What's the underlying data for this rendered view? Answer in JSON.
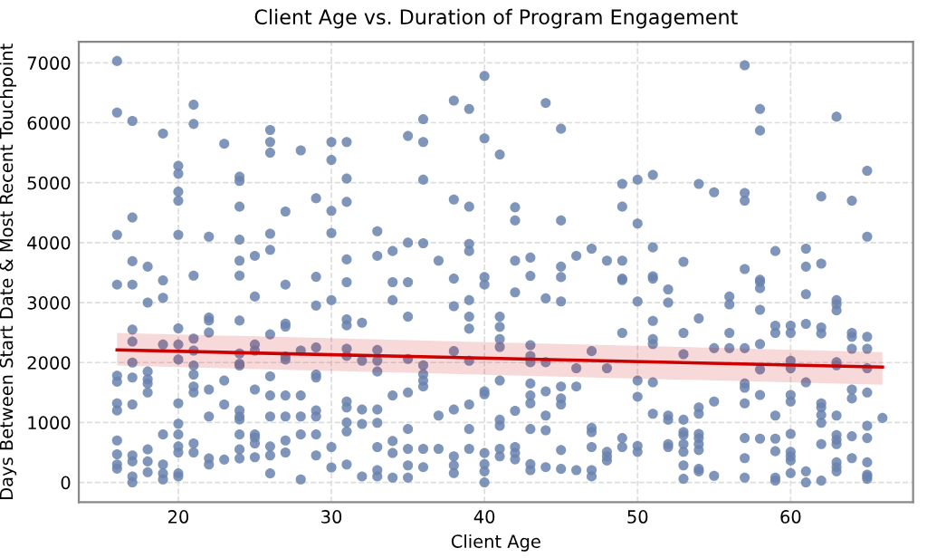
{
  "chart_data": {
    "type": "scatter",
    "title": "Client Age vs. Duration of Program Engagement",
    "xlabel": "Client Age",
    "ylabel": "Days Between Start Date & Most Recent Touchpoint",
    "xlim": [
      13.5,
      68
    ],
    "ylim": [
      -330,
      7350
    ],
    "xticks": [
      20,
      30,
      40,
      50,
      60
    ],
    "yticks": [
      0,
      1000,
      2000,
      3000,
      4000,
      5000,
      6000,
      7000
    ],
    "grid": true,
    "series": [
      {
        "marker": "circle",
        "color": "#6a82ae",
        "x": [
          16,
          16,
          16,
          16,
          16,
          16,
          16,
          16,
          16,
          16,
          16,
          16,
          17,
          17,
          17,
          17,
          17,
          17,
          17,
          17,
          17,
          17,
          17,
          17,
          17,
          18,
          18,
          18,
          18,
          18,
          18,
          18,
          18,
          18,
          19,
          19,
          19,
          19,
          19,
          19,
          19,
          19,
          20,
          20,
          20,
          20,
          20,
          20,
          20,
          20,
          20,
          20,
          20,
          20,
          20,
          20,
          20,
          21,
          21,
          21,
          21,
          21,
          21,
          21,
          21,
          21,
          21,
          21,
          22,
          22,
          22,
          22,
          22,
          22,
          22,
          22,
          23,
          23,
          23,
          23,
          24,
          24,
          24,
          24,
          24,
          24,
          24,
          24,
          24,
          24,
          24,
          24,
          24,
          24,
          24,
          24,
          25,
          25,
          25,
          25,
          25,
          25,
          25,
          25,
          25,
          26,
          26,
          26,
          26,
          26,
          26,
          26,
          26,
          26,
          26,
          26,
          26,
          27,
          27,
          27,
          27,
          27,
          27,
          27,
          27,
          27,
          27,
          28,
          28,
          28,
          28,
          28,
          28,
          29,
          29,
          29,
          29,
          29,
          29,
          29,
          29,
          29,
          29,
          30,
          30,
          30,
          30,
          30,
          30,
          30,
          31,
          31,
          31,
          31,
          31,
          31,
          31,
          31,
          31,
          31,
          31,
          31,
          31,
          31,
          32,
          32,
          32,
          32,
          32,
          33,
          33,
          33,
          33,
          33,
          33,
          33,
          33,
          33,
          33,
          34,
          34,
          34,
          34,
          34,
          34,
          34,
          35,
          35,
          35,
          35,
          35,
          35,
          35,
          35,
          35,
          35,
          36,
          36,
          36,
          36,
          36,
          36,
          36,
          36,
          36,
          36,
          37,
          37,
          37,
          38,
          38,
          38,
          38,
          38,
          38,
          38,
          38,
          38,
          39,
          39,
          39,
          39,
          39,
          39,
          39,
          39,
          39,
          39,
          39,
          40,
          40,
          40,
          40,
          40,
          40,
          40,
          40,
          40,
          40,
          41,
          41,
          41,
          41,
          41,
          41,
          41,
          41,
          41,
          41,
          42,
          42,
          42,
          42,
          42,
          42,
          42,
          42,
          43,
          43,
          43,
          43,
          43,
          43,
          43,
          43,
          43,
          43,
          43,
          44,
          44,
          44,
          44,
          44,
          44,
          44,
          45,
          45,
          45,
          45,
          45,
          45,
          45,
          45,
          45,
          45,
          46,
          46,
          46,
          46,
          47,
          47,
          47,
          47,
          47,
          47,
          47,
          48,
          48,
          48,
          48,
          48,
          49,
          49,
          49,
          49,
          49,
          49,
          49,
          49,
          50,
          50,
          50,
          50,
          50,
          50,
          50,
          51,
          51,
          51,
          51,
          51,
          51,
          51,
          51,
          51,
          52,
          52,
          52,
          52,
          52,
          52,
          53,
          53,
          53,
          53,
          53,
          53,
          53,
          53,
          53,
          53,
          54,
          54,
          54,
          54,
          54,
          54,
          54,
          54,
          54,
          54,
          55,
          55,
          55,
          55,
          56,
          56,
          56,
          56,
          57,
          57,
          57,
          57,
          57,
          57,
          57,
          57,
          57,
          57,
          57,
          58,
          58,
          58,
          58,
          58,
          58,
          58,
          58,
          58,
          58,
          59,
          59,
          59,
          59,
          59,
          59,
          59,
          59,
          60,
          60,
          60,
          60,
          60,
          60,
          60,
          60,
          60,
          60,
          60,
          61,
          61,
          61,
          61,
          61,
          61,
          61,
          62,
          62,
          62,
          62,
          62,
          62,
          62,
          62,
          62,
          62,
          63,
          63,
          63,
          63,
          63,
          63,
          63,
          63,
          63,
          63,
          63,
          63,
          63,
          64,
          64,
          64,
          64,
          64,
          64,
          64,
          64,
          65,
          65,
          65,
          65,
          65,
          65,
          65,
          65,
          65,
          65,
          65,
          65,
          66
        ],
        "values": [
          7030,
          6170,
          4130,
          3300,
          1780,
          1680,
          1320,
          1200,
          700,
          470,
          300,
          230,
          6030,
          4420,
          3690,
          3300,
          2550,
          2350,
          2000,
          1750,
          1300,
          450,
          350,
          100,
          0,
          3600,
          3000,
          1850,
          1720,
          1650,
          1500,
          550,
          350,
          170,
          5820,
          3370,
          3080,
          2300,
          800,
          300,
          150,
          50,
          5280,
          5150,
          4850,
          4700,
          4130,
          2570,
          2300,
          2050,
          1320,
          980,
          800,
          600,
          500,
          150,
          100,
          6300,
          5980,
          3450,
          2400,
          2200,
          1950,
          1800,
          1600,
          1500,
          650,
          500,
          4100,
          2750,
          2700,
          2500,
          1550,
          1100,
          400,
          300,
          5650,
          1700,
          1300,
          380,
          5100,
          5030,
          4600,
          4050,
          3700,
          3450,
          2700,
          2150,
          1980,
          1950,
          1200,
          1100,
          1050,
          800,
          550,
          400,
          3780,
          3100,
          2300,
          2200,
          1550,
          800,
          750,
          650,
          420,
          5880,
          5680,
          5500,
          4150,
          3880,
          2470,
          1770,
          1450,
          1100,
          600,
          450,
          150,
          4520,
          3300,
          2650,
          2600,
          2100,
          2050,
          1450,
          1100,
          700,
          500,
          5540,
          2200,
          1450,
          1100,
          800,
          50,
          4740,
          3430,
          2950,
          2250,
          1800,
          1750,
          1200,
          1100,
          800,
          450,
          5680,
          5380,
          4530,
          4160,
          3040,
          590,
          250,
          5680,
          5070,
          4680,
          3720,
          3340,
          2720,
          2620,
          2230,
          2110,
          1350,
          1250,
          1000,
          850,
          300,
          2665,
          2030,
          1215,
          975,
          100,
          4190,
          3780,
          2210,
          2030,
          1850,
          1215,
          995,
          590,
          205,
          100,
          3860,
          3340,
          3040,
          1450,
          690,
          490,
          80,
          5780,
          4000,
          3340,
          2765,
          2060,
          1500,
          890,
          560,
          285,
          80,
          6060,
          5680,
          5050,
          3990,
          1955,
          1805,
          1700,
          1600,
          560,
          255,
          3700,
          1115,
          560,
          6370,
          4720,
          3400,
          2940,
          2190,
          1215,
          435,
          285,
          155,
          6230,
          4600,
          3980,
          3860,
          3040,
          2765,
          2565,
          2030,
          1300,
          890,
          560,
          6780,
          5740,
          3425,
          3300,
          1520,
          1470,
          490,
          305,
          185,
          0,
          5470,
          2765,
          2595,
          2390,
          2260,
          1700,
          1045,
          945,
          560,
          435,
          4590,
          4370,
          3700,
          3170,
          1195,
          590,
          490,
          385,
          3750,
          3445,
          2290,
          2110,
          2005,
          1650,
          1450,
          1320,
          890,
          305,
          205,
          6330,
          3070,
          2005,
          1520,
          1115,
          870,
          255,
          5900,
          4370,
          3600,
          3425,
          3020,
          1600,
          1400,
          1300,
          540,
          225,
          3780,
          1905,
          1600,
          205,
          3900,
          2190,
          910,
          840,
          590,
          205,
          100,
          3700,
          1905,
          510,
          435,
          365,
          4980,
          4600,
          3700,
          3400,
          3375,
          2495,
          740,
          590,
          5050,
          4320,
          3020,
          1700,
          1430,
          610,
          510,
          5130,
          3920,
          3440,
          3400,
          2695,
          2390,
          2310,
          1670,
          1145,
          3220,
          3000,
          1115,
          1045,
          640,
          590,
          3680,
          2495,
          2140,
          1045,
          840,
          790,
          640,
          510,
          285,
          60,
          4980,
          2735,
          1250,
          1145,
          810,
          740,
          640,
          540,
          225,
          185,
          4840,
          2240,
          1350,
          110,
          3100,
          2970,
          2495,
          2240,
          6960,
          4830,
          4700,
          3560,
          2240,
          1650,
          1580,
          1320,
          740,
          405,
          80,
          6230,
          5870,
          3380,
          3345,
          3240,
          2880,
          2310,
          1885,
          1460,
          730,
          3860,
          2615,
          2495,
          1115,
          730,
          520,
          80,
          30,
          2615,
          2495,
          2030,
          1905,
          1460,
          1350,
          810,
          510,
          435,
          365,
          155,
          3900,
          3600,
          3140,
          2645,
          1670,
          185,
          0,
          4770,
          3650,
          2585,
          2485,
          1320,
          1250,
          1125,
          995,
          640,
          30,
          6100,
          3040,
          2970,
          2870,
          2005,
          1955,
          1115,
          790,
          710,
          640,
          335,
          255,
          185,
          4700,
          2495,
          2430,
          2230,
          1550,
          1400,
          770,
          405,
          5200,
          4100,
          2430,
          2230,
          1905,
          1500,
          945,
          740,
          335,
          130,
          100,
          60,
          1075
        ]
      },
      {
        "type": "line",
        "marker": "none",
        "color": "#cc0000",
        "x": [
          16,
          66
        ],
        "values": [
          2210,
          1925
        ],
        "lower": [
          1950,
          1630
        ],
        "upper": [
          2495,
          2175
        ]
      }
    ]
  }
}
